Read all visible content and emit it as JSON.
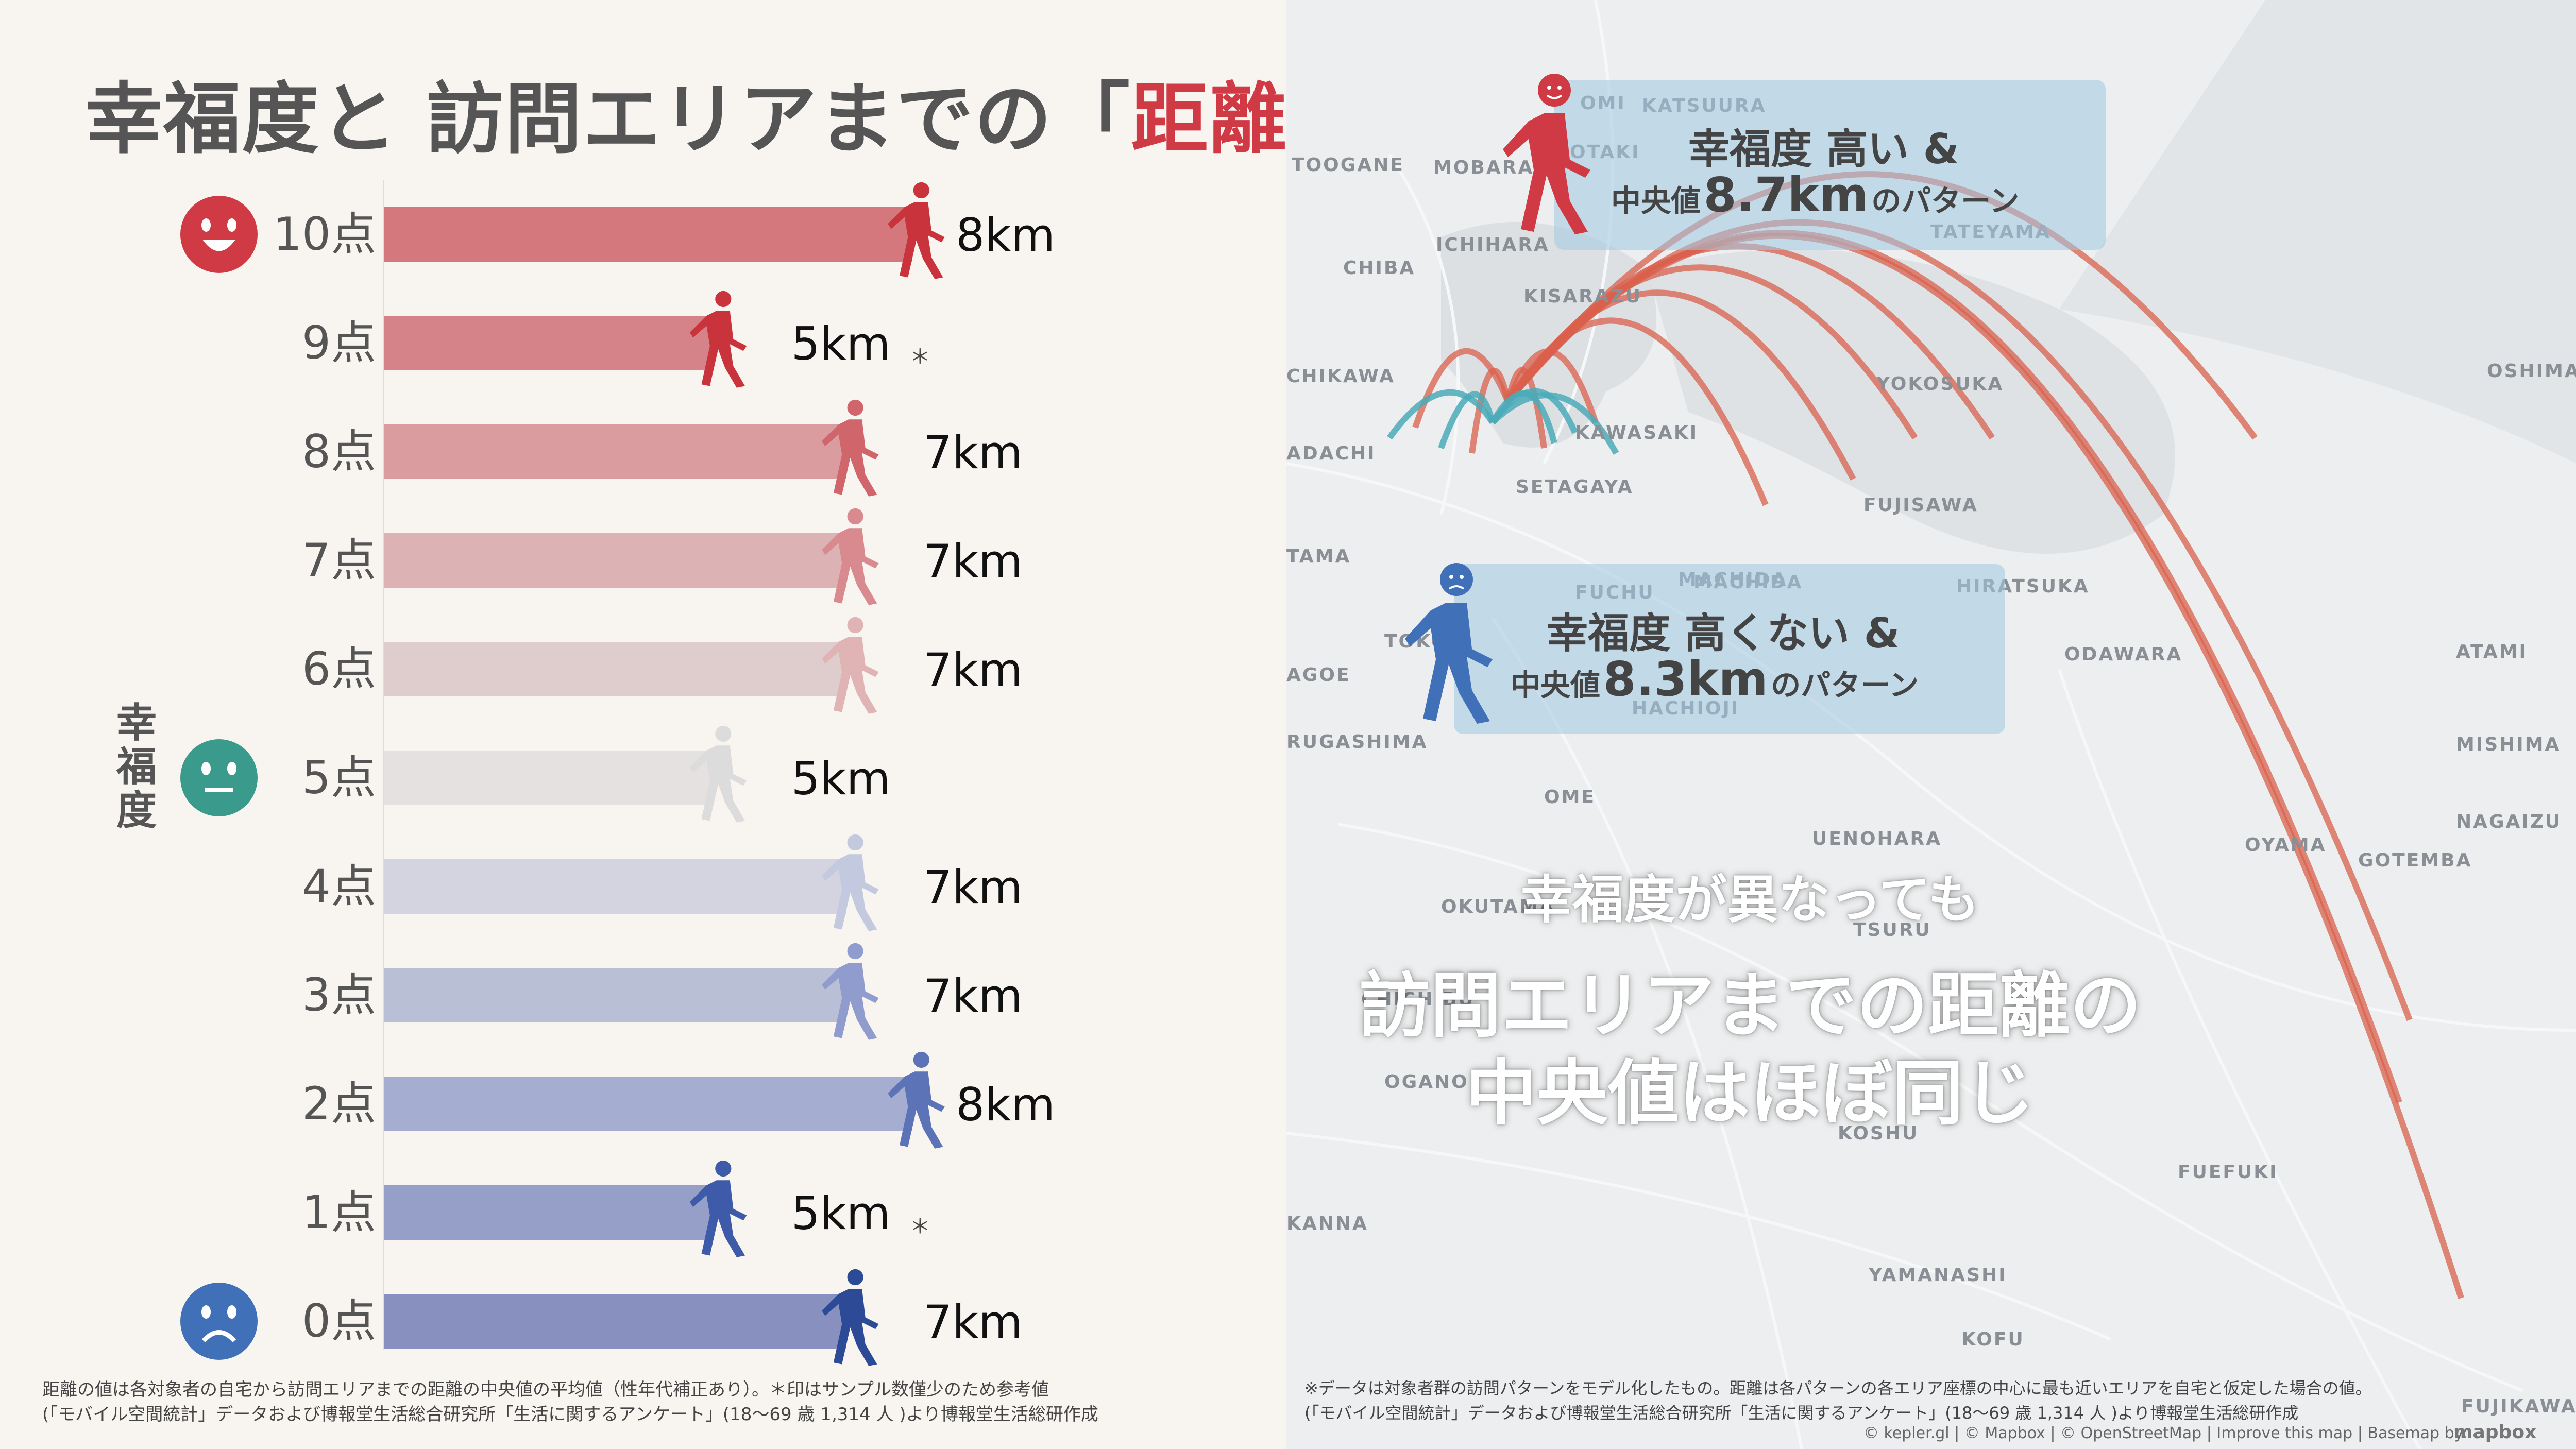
{
  "title": {
    "main": "幸福度と 訪問エリアまでの「",
    "highlight": "距離",
    "close": "」"
  },
  "chart_data": {
    "type": "bar",
    "orientation": "horizontal",
    "ylabel": "幸福度",
    "categories": [
      "10点",
      "9点",
      "8点",
      "7点",
      "6点",
      "5点",
      "4点",
      "3点",
      "2点",
      "1点",
      "0点"
    ],
    "values": [
      8,
      5,
      7,
      7,
      7,
      5,
      7,
      7,
      8,
      5,
      7
    ],
    "value_labels": [
      "8km",
      "5km",
      "7km",
      "7km",
      "7km",
      "5km",
      "7km",
      "7km",
      "8km",
      "5km",
      "7km"
    ],
    "reference_marks": [
      "",
      "＊",
      "",
      "",
      "",
      "",
      "",
      "",
      "",
      "＊",
      ""
    ],
    "unit": "km",
    "xlim": [
      0,
      8.7
    ],
    "bar_colors": [
      "#d4787d",
      "#d58389",
      "#db9ca0",
      "#ddb2b4",
      "#dfcccd",
      "#e4e1e0",
      "#d3d4df",
      "#b9bfd4",
      "#a5add0",
      "#969fc8",
      "#8890bf"
    ],
    "icon_colors": [
      "#c9343c",
      "#c9343c",
      "#d0656b",
      "#d98a8e",
      "#e0b3b5",
      "#dcdcdc",
      "#c3c9de",
      "#8f9ccd",
      "#5d73b7",
      "#3d5ba8",
      "#2d4a97"
    ],
    "faces": {
      "top": "happy-face",
      "middle": "neutral-face",
      "bottom": "sad-face"
    },
    "face_colors": {
      "top": "#d03a45",
      "middle": "#3a9a8c",
      "bottom": "#3f70b8"
    }
  },
  "notes": {
    "left_1": "距離の値は各対象者の自宅から訪問エリアまでの距離の中央値の平均値（性年代補正あり）。＊印はサンプル数僅少のため参考値",
    "left_2": "(「モバイル空間統計」データおよび博報堂生活総合研究所「生活に関するアンケート」(18～69 歳 1,314 人 )より博報堂生活総研作成",
    "right_1": "※データは対象者群の訪問パターンをモデル化したもの。距離は各パターンの各エリア座標の中心に最も近いエリアを自宅と仮定した場合の値。",
    "right_2": "(「モバイル空間統計」データおよび博報堂生活総合研究所「生活に関するアンケート」(18～69 歳 1,314 人 )より博報堂生活総研作成"
  },
  "map": {
    "labels": [
      "TOOGANE",
      "MOBARA",
      "KATSUURA",
      "OTAKI",
      "ICHIHARA",
      "TATEYAMA",
      "CHIBA",
      "KISARAZU",
      "CHIKAWA",
      "YOKOSUKA",
      "OSHIMA",
      "ADACHI",
      "KAWASAKI",
      "SETAGAYA",
      "FUJISAWA",
      "TAMA",
      "FUCHU",
      "MACHIDA",
      "HIRATSUKA",
      "TOKO",
      "ODAWARA",
      "ATAMI",
      "AGOE",
      "HACHIOJI",
      "RUGASHIMA",
      "MISHIMA",
      "OME",
      "NAGAIZU",
      "UENOHARA",
      "OYAMA",
      "GOTEMBA",
      "OKUTAMA",
      "TSURU",
      "CHICHIBU",
      "OGANO",
      "KOSHU",
      "FUEFUKI",
      "KANNA",
      "YAMANASHI",
      "KOFU",
      "FUJIKAWA",
      "OMI",
      "MACHIDA"
    ],
    "callout_high": {
      "line1": "幸福度 高い &",
      "line2_prefix": "中央値",
      "line2_value": "8.7km",
      "line2_suffix": "のパターン"
    },
    "callout_low": {
      "line1": "幸福度 高くない &",
      "line2_prefix": "中央値",
      "line2_value": "8.3km",
      "line2_suffix": "のパターン"
    },
    "message_1": "幸福度が異なっても",
    "message_2": "訪問エリアまでの距離の",
    "message_3": "中央値はほぼ同じ",
    "credit": "© kepler.gl | © Mapbox | © OpenStreetMap | Improve this map | Basemap by:",
    "mapbox": "mapbox",
    "arc_color_high": "#d9604c",
    "arc_color_low": "#4aaab8"
  }
}
